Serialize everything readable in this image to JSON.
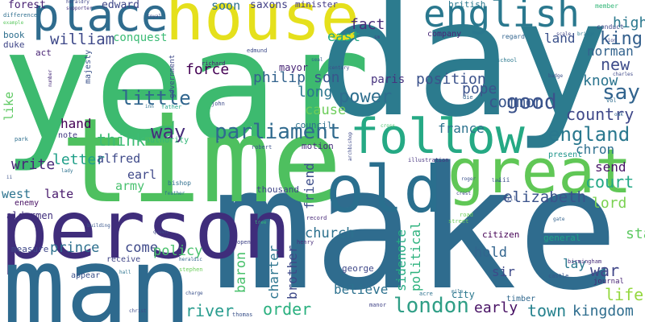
{
  "words": [
    {
      "t": "year",
      "c": "#3dba6f"
    },
    {
      "t": "day",
      "c": "#2c7b8e"
    },
    {
      "t": "make",
      "c": "#2f6c8e"
    },
    {
      "t": "time",
      "c": "#4ec05f"
    },
    {
      "t": "person",
      "c": "#3f2d7b"
    },
    {
      "t": "man",
      "c": "#2e6a8e"
    },
    {
      "t": "house",
      "c": "#e5e01c"
    },
    {
      "t": "great",
      "c": "#60c756"
    },
    {
      "t": "follow",
      "c": "#25a984"
    },
    {
      "t": "old",
      "c": "#2a6f8e"
    },
    {
      "t": "place",
      "c": "#2f6c8e"
    },
    {
      "t": "english",
      "c": "#2a788e"
    },
    {
      "t": "parliament",
      "c": "#306a8e"
    },
    {
      "t": "england",
      "c": "#2a788e"
    },
    {
      "t": "london",
      "c": "#2f9e86"
    },
    {
      "t": "power",
      "c": "#2e6e8e"
    },
    {
      "t": "little",
      "c": "#31668e"
    },
    {
      "t": "way",
      "c": "#472c7a"
    },
    {
      "t": "william",
      "c": "#3e4989"
    },
    {
      "t": "think",
      "c": "#3dbc74"
    },
    {
      "t": "country",
      "c": "#3f4889"
    },
    {
      "t": "king",
      "c": "#34608d"
    },
    {
      "t": "say",
      "c": "#32648e"
    },
    {
      "t": "good",
      "c": "#3b528b"
    },
    {
      "t": "common",
      "c": "#39558c"
    },
    {
      "t": "elizabeth",
      "c": "#3a538b"
    },
    {
      "t": "order",
      "c": "#2ab07f"
    },
    {
      "t": "church",
      "c": "#2d718e"
    },
    {
      "t": "river",
      "c": "#2a9d8f"
    },
    {
      "t": "town",
      "c": "#26828e"
    },
    {
      "t": "early",
      "c": "#471164"
    },
    {
      "t": "kingdom",
      "c": "#2e6d8e"
    },
    {
      "t": "state",
      "c": "#5ec962"
    },
    {
      "t": "war",
      "c": "#404688"
    },
    {
      "t": "life",
      "c": "#95d840"
    },
    {
      "t": "lord",
      "c": "#7ad151"
    },
    {
      "t": "court",
      "c": "#22a785"
    },
    {
      "t": "new",
      "c": "#3e4c8a"
    },
    {
      "t": "know",
      "c": "#2b748e"
    },
    {
      "t": "high",
      "c": "#2a788e"
    },
    {
      "t": "norman",
      "c": "#33638d"
    },
    {
      "t": "chron",
      "c": "#2e6f8e"
    },
    {
      "t": "send",
      "c": "#481668"
    },
    {
      "t": "land",
      "c": "#3b518b"
    },
    {
      "t": "force",
      "c": "#440154"
    },
    {
      "t": "philip",
      "c": "#33638d"
    },
    {
      "t": "position",
      "c": "#3b528b"
    },
    {
      "t": "son",
      "c": "#39568c"
    },
    {
      "t": "long",
      "c": "#2a768e"
    },
    {
      "t": "cause",
      "c": "#6ccd5a"
    },
    {
      "t": "pope",
      "c": "#3b528b"
    },
    {
      "t": "france",
      "c": "#2c738e"
    },
    {
      "t": "fact",
      "c": "#472c7a"
    },
    {
      "t": "east",
      "c": "#22a884"
    },
    {
      "t": "paris",
      "c": "#46327e"
    },
    {
      "t": "soon",
      "c": "#2c718e"
    },
    {
      "t": "saxons",
      "c": "#424086"
    },
    {
      "t": "edward",
      "c": "#3f4788"
    },
    {
      "t": "forest",
      "c": "#482173"
    },
    {
      "t": "conquest",
      "c": "#3bbb75"
    },
    {
      "t": "hand",
      "c": "#440154"
    },
    {
      "t": "write",
      "c": "#482878"
    },
    {
      "t": "letter",
      "c": "#1f9f88"
    },
    {
      "t": "west",
      "c": "#2c738e"
    },
    {
      "t": "late",
      "c": "#481a6c"
    },
    {
      "t": "alfred",
      "c": "#3e4989"
    },
    {
      "t": "earl",
      "c": "#3f4889"
    },
    {
      "t": "army",
      "c": "#48c16e"
    },
    {
      "t": "like",
      "c": "#5ec962"
    },
    {
      "t": "prince",
      "c": "#2d708e"
    },
    {
      "t": "come",
      "c": "#3e4989"
    },
    {
      "t": "policy",
      "c": "#4ac16d"
    },
    {
      "t": "baron",
      "c": "#4ac16d"
    },
    {
      "t": "charter",
      "c": "#2b748e"
    },
    {
      "t": "brother",
      "c": "#3e4a89"
    },
    {
      "t": "friend",
      "c": "#3d4e8a"
    },
    {
      "t": "sidenote",
      "c": "#25ab82"
    },
    {
      "t": "political",
      "c": "#2db27d"
    },
    {
      "t": "believe",
      "c": "#2c718e"
    },
    {
      "t": "hold",
      "c": "#32658e"
    },
    {
      "t": "lay",
      "c": "#2a788e"
    },
    {
      "t": "sir",
      "c": "#3e4a89"
    },
    {
      "t": "council",
      "c": "#2d718e"
    },
    {
      "t": "mayor",
      "c": "#482576"
    },
    {
      "t": "motion",
      "c": "#472d7b"
    },
    {
      "t": "thousand",
      "c": "#404588"
    },
    {
      "t": "minister",
      "c": "#443983"
    },
    {
      "t": "british",
      "c": "#2a788e"
    },
    {
      "t": "company",
      "c": "#482677"
    },
    {
      "t": "government",
      "c": "#3e4a89"
    },
    {
      "t": "majesty",
      "c": "#3b528b"
    },
    {
      "t": "duke",
      "c": "#404688"
    },
    {
      "t": "book",
      "c": "#2e6f8e"
    },
    {
      "t": "act",
      "c": "#482374"
    },
    {
      "t": "note",
      "c": "#443a83"
    },
    {
      "t": "authority",
      "c": "#35b779"
    },
    {
      "t": "bishop",
      "c": "#2e6e8e"
    },
    {
      "t": "aldermen",
      "c": "#3f2d7b"
    },
    {
      "t": "enemy",
      "c": "#471063"
    },
    {
      "t": "measure",
      "c": "#3f4889"
    },
    {
      "t": "receive",
      "c": "#404688"
    },
    {
      "t": "appear",
      "c": "#3b528b"
    },
    {
      "t": "george",
      "c": "#3f4889"
    },
    {
      "t": "citizen",
      "c": "#440154"
    },
    {
      "t": "general",
      "c": "#20a386"
    },
    {
      "t": "timber",
      "c": "#31688e"
    },
    {
      "t": "journal",
      "c": "#482475"
    },
    {
      "t": "city",
      "c": "#2a788e"
    },
    {
      "t": "present",
      "c": "#1f958b"
    },
    {
      "t": "illustration",
      "c": "#46337f"
    },
    {
      "t": "record",
      "c": "#482878"
    },
    {
      "t": "henry",
      "c": "#472d7b"
    },
    {
      "t": "open",
      "c": "#404588"
    },
    {
      "t": "stephen",
      "c": "#6ccd5a"
    },
    {
      "t": "thomas",
      "c": "#3b528b"
    },
    {
      "t": "manor",
      "c": "#414487"
    },
    {
      "t": "acre",
      "c": "#2c718e"
    },
    {
      "t": "castle",
      "c": "#39568c"
    },
    {
      "t": "birmingham",
      "c": "#472c7a"
    },
    {
      "t": "edmund",
      "c": "#3e4c8a"
    },
    {
      "t": "richard",
      "c": "#481d6f"
    },
    {
      "t": "robert",
      "c": "#3b528b"
    },
    {
      "t": "school",
      "c": "#2a788e"
    },
    {
      "t": "regard",
      "c": "#32648e"
    },
    {
      "t": "conduct",
      "c": "#3f4889"
    },
    {
      "t": "member",
      "c": "#35b779"
    },
    {
      "t": "difference",
      "c": "#2e6e8e"
    },
    {
      "t": "heraldry",
      "c": "#404688"
    },
    {
      "t": "supporter",
      "c": "#46337f"
    },
    {
      "t": "royal",
      "c": "#3e4c8a"
    },
    {
      "t": "number",
      "c": "#472c7a"
    },
    {
      "t": "park",
      "c": "#2e6f8e"
    },
    {
      "t": "father",
      "c": "#20a386"
    },
    {
      "t": "john",
      "c": "#3e4c8a"
    },
    {
      "t": "vol",
      "c": "#2f6c8e"
    },
    {
      "t": "die",
      "c": "#33638d"
    },
    {
      "t": "hill",
      "c": "#3b528b"
    },
    {
      "t": "road",
      "c": "#6ccd5a"
    },
    {
      "t": "street",
      "c": "#6ccd5a"
    },
    {
      "t": "crest",
      "c": "#404688"
    },
    {
      "t": "archbishop",
      "c": "#3e4989"
    },
    {
      "t": "building",
      "c": "#39568c"
    },
    {
      "t": "feather",
      "c": "#2c718e"
    },
    {
      "t": "heraldic",
      "c": "#33638d"
    },
    {
      "t": "hall",
      "c": "#2c738e"
    },
    {
      "t": "charge",
      "c": "#3b528b"
    },
    {
      "t": "cross",
      "c": "#4ac16d"
    },
    {
      "t": "badge",
      "c": "#3b528b"
    },
    {
      "t": "lion",
      "c": "#3f4889"
    },
    {
      "t": "bridge",
      "c": "#2a788e"
    },
    {
      "t": "charles",
      "c": "#3e4989"
    },
    {
      "t": "seal",
      "c": "#33638d"
    },
    {
      "t": "century",
      "c": "#3e4c8a"
    },
    {
      "t": "example",
      "c": "#5ec962"
    },
    {
      "t": "inn",
      "c": "#2e6f8e"
    },
    {
      "t": "roger",
      "c": "#3b528b"
    },
    {
      "t": "iii",
      "c": "#3b528b"
    },
    {
      "t": "lady",
      "c": "#2c718e"
    },
    {
      "t": "sm",
      "c": "#404688"
    },
    {
      "t": "queen",
      "c": "#3f4889"
    },
    {
      "t": "christ",
      "c": "#3e4c8a"
    },
    {
      "t": "scale",
      "c": "#404688"
    },
    {
      "t": "ii",
      "c": "#3b528b"
    },
    {
      "t": "law",
      "c": "#3b528b"
    },
    {
      "t": "mile",
      "c": "#2c718e"
    },
    {
      "t": "oak",
      "c": "#33638d"
    },
    {
      "t": "gate",
      "c": "#33638d"
    },
    {
      "t": "tree",
      "c": "#35b779"
    }
  ]
}
